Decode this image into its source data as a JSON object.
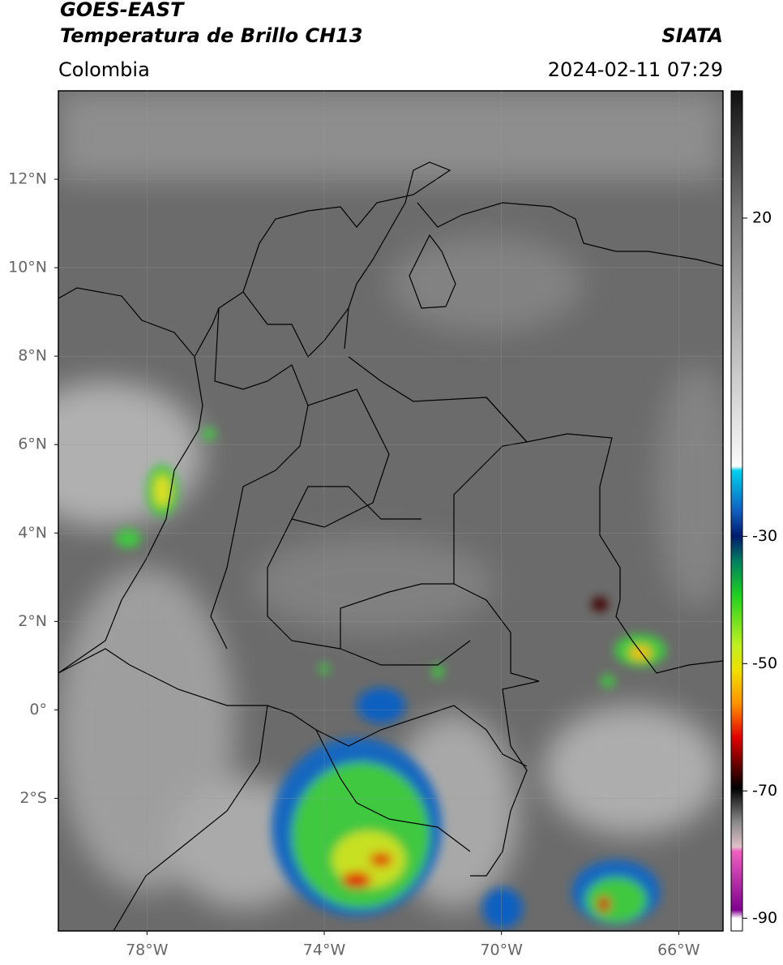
{
  "header": {
    "satellite": "GOES-EAST",
    "product": "Temperatura de Brillo CH13",
    "region": "Colombia",
    "source": "SIATA",
    "datetime": "2024-02-11 07:29"
  },
  "map": {
    "lonlim": [
      -80,
      -65
    ],
    "latlim": [
      -5,
      14
    ],
    "lat_ticks": [
      {
        "value": 12,
        "label": "12°N"
      },
      {
        "value": 10,
        "label": "10°N"
      },
      {
        "value": 8,
        "label": "8°N"
      },
      {
        "value": 6,
        "label": "6°N"
      },
      {
        "value": 4,
        "label": "4°N"
      },
      {
        "value": 2,
        "label": "2°N"
      },
      {
        "value": 0,
        "label": "0°"
      },
      {
        "value": -2,
        "label": "2°S"
      }
    ],
    "lon_ticks": [
      {
        "value": -78,
        "label": "78°W"
      },
      {
        "value": -74,
        "label": "74°W"
      },
      {
        "value": -70,
        "label": "70°W"
      },
      {
        "value": -66,
        "label": "66°W"
      }
    ]
  },
  "colorbar": {
    "lim": [
      -92,
      40
    ],
    "ticks": [
      20,
      -30,
      -50,
      -70,
      -90
    ]
  }
}
